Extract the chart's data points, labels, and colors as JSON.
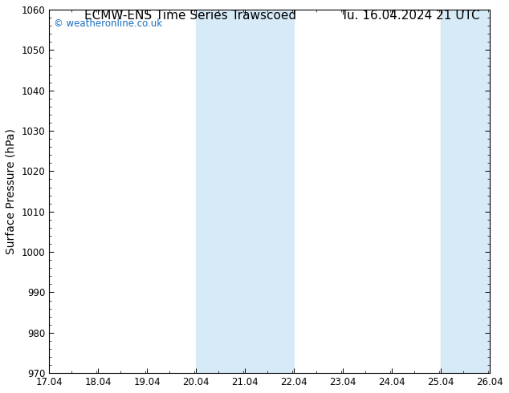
{
  "title_left": "ECMW-ENS Time Series Trawscoed",
  "title_right": "Tu. 16.04.2024 21 UTC",
  "ylabel": "Surface Pressure (hPa)",
  "xlim": [
    17.04,
    26.04
  ],
  "ylim": [
    970,
    1060
  ],
  "yticks": [
    970,
    980,
    990,
    1000,
    1010,
    1020,
    1030,
    1040,
    1050,
    1060
  ],
  "xtick_labels": [
    "17.04",
    "18.04",
    "19.04",
    "20.04",
    "21.04",
    "22.04",
    "23.04",
    "24.04",
    "25.04",
    "26.04"
  ],
  "xtick_positions": [
    17.04,
    18.04,
    19.04,
    20.04,
    21.04,
    22.04,
    23.04,
    24.04,
    25.04,
    26.04
  ],
  "shaded_bands": [
    {
      "x_start": 20.04,
      "x_end": 21.04
    },
    {
      "x_start": 21.04,
      "x_end": 22.04
    },
    {
      "x_start": 25.04,
      "x_end": 26.04
    }
  ],
  "shade_color": "#d6eaf8",
  "background_color": "#ffffff",
  "watermark_text": "© weatheronline.co.uk",
  "watermark_color": "#1a6ec0",
  "title_fontsize": 11,
  "tick_fontsize": 8.5,
  "ylabel_fontsize": 10
}
